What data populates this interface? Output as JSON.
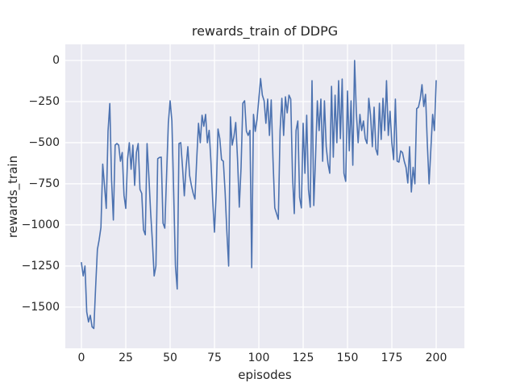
{
  "figure": {
    "background": "#ffffff",
    "axes_background": "#eaeaf2",
    "gridline_color": "#ffffff",
    "text_color": "#262626"
  },
  "chart_data": {
    "type": "line",
    "title": "rewards_train of DDPG",
    "xlabel": "episodes",
    "ylabel": "rewards_train",
    "line_color": "#4c72b0",
    "grid": true,
    "legend": "none",
    "xlim": [
      -9.1,
      215.9
    ],
    "ylim": [
      -1750.5,
      98
    ],
    "xticks": [
      0,
      25,
      50,
      75,
      100,
      125,
      150,
      175,
      200
    ],
    "xtick_labels": [
      "0",
      "25",
      "50",
      "75",
      "100",
      "125",
      "150",
      "175",
      "200"
    ],
    "yticks": [
      0,
      -250,
      -500,
      -750,
      -1000,
      -1250,
      -1500
    ],
    "ytick_labels": [
      "0",
      "−250",
      "−500",
      "−750",
      "−1000",
      "−1250",
      "−1500"
    ],
    "points": [
      [
        0,
        -1230
      ],
      [
        1,
        -1310
      ],
      [
        2,
        -1250
      ],
      [
        3,
        -1530
      ],
      [
        4,
        -1590
      ],
      [
        5,
        -1550
      ],
      [
        6,
        -1620
      ],
      [
        7,
        -1630
      ],
      [
        8,
        -1380
      ],
      [
        9,
        -1150
      ],
      [
        10,
        -1090
      ],
      [
        11,
        -1015
      ],
      [
        12,
        -630
      ],
      [
        13,
        -760
      ],
      [
        14,
        -900
      ],
      [
        15,
        -430
      ],
      [
        16,
        -262
      ],
      [
        17,
        -730
      ],
      [
        18,
        -970
      ],
      [
        19,
        -515
      ],
      [
        20,
        -505
      ],
      [
        21,
        -515
      ],
      [
        22,
        -613
      ],
      [
        23,
        -560
      ],
      [
        24,
        -820
      ],
      [
        25,
        -900
      ],
      [
        26,
        -600
      ],
      [
        27,
        -500
      ],
      [
        28,
        -662
      ],
      [
        29,
        -515
      ],
      [
        30,
        -760
      ],
      [
        31,
        -560
      ],
      [
        32,
        -505
      ],
      [
        33,
        -784
      ],
      [
        34,
        -808
      ],
      [
        35,
        -1030
      ],
      [
        36,
        -1060
      ],
      [
        37,
        -505
      ],
      [
        38,
        -700
      ],
      [
        39,
        -921
      ],
      [
        40,
        -1100
      ],
      [
        41,
        -1310
      ],
      [
        42,
        -1250
      ],
      [
        43,
        -598
      ],
      [
        44,
        -590
      ],
      [
        45,
        -588
      ],
      [
        46,
        -990
      ],
      [
        47,
        -1020
      ],
      [
        48,
        -700
      ],
      [
        49,
        -380
      ],
      [
        50,
        -245
      ],
      [
        51,
        -368
      ],
      [
        52,
        -800
      ],
      [
        53,
        -1250
      ],
      [
        54,
        -1390
      ],
      [
        55,
        -505
      ],
      [
        56,
        -500
      ],
      [
        57,
        -650
      ],
      [
        58,
        -823
      ],
      [
        59,
        -650
      ],
      [
        60,
        -524
      ],
      [
        61,
        -700
      ],
      [
        62,
        -760
      ],
      [
        63,
        -808
      ],
      [
        64,
        -843
      ],
      [
        65,
        -600
      ],
      [
        66,
        -382
      ],
      [
        67,
        -500
      ],
      [
        68,
        -333
      ],
      [
        69,
        -400
      ],
      [
        70,
        -328
      ],
      [
        71,
        -500
      ],
      [
        72,
        -425
      ],
      [
        73,
        -613
      ],
      [
        74,
        -850
      ],
      [
        75,
        -1044
      ],
      [
        76,
        -800
      ],
      [
        77,
        -417
      ],
      [
        78,
        -475
      ],
      [
        79,
        -603
      ],
      [
        80,
        -613
      ],
      [
        81,
        -800
      ],
      [
        82,
        -1044
      ],
      [
        83,
        -1250
      ],
      [
        84,
        -343
      ],
      [
        85,
        -515
      ],
      [
        86,
        -460
      ],
      [
        87,
        -377
      ],
      [
        88,
        -598
      ],
      [
        89,
        -892
      ],
      [
        90,
        -650
      ],
      [
        91,
        -260
      ],
      [
        92,
        -245
      ],
      [
        93,
        -430
      ],
      [
        94,
        -456
      ],
      [
        95,
        -425
      ],
      [
        96,
        -1260
      ],
      [
        97,
        -328
      ],
      [
        98,
        -431
      ],
      [
        99,
        -358
      ],
      [
        100,
        -235
      ],
      [
        101,
        -110
      ],
      [
        102,
        -211
      ],
      [
        103,
        -245
      ],
      [
        104,
        -382
      ],
      [
        105,
        -235
      ],
      [
        106,
        -456
      ],
      [
        107,
        -240
      ],
      [
        108,
        -603
      ],
      [
        109,
        -897
      ],
      [
        110,
        -931
      ],
      [
        111,
        -966
      ],
      [
        112,
        -426
      ],
      [
        113,
        -230
      ],
      [
        114,
        -456
      ],
      [
        115,
        -221
      ],
      [
        116,
        -319
      ],
      [
        117,
        -211
      ],
      [
        118,
        -235
      ],
      [
        119,
        -701
      ],
      [
        120,
        -931
      ],
      [
        121,
        -426
      ],
      [
        122,
        -368
      ],
      [
        123,
        -833
      ],
      [
        124,
        -897
      ],
      [
        125,
        -382
      ],
      [
        126,
        -686
      ],
      [
        127,
        -333
      ],
      [
        128,
        -784
      ],
      [
        129,
        -892
      ],
      [
        130,
        -123
      ],
      [
        131,
        -882
      ],
      [
        132,
        -588
      ],
      [
        133,
        -245
      ],
      [
        134,
        -426
      ],
      [
        135,
        -235
      ],
      [
        136,
        -613
      ],
      [
        137,
        -245
      ],
      [
        138,
        -524
      ],
      [
        139,
        -627
      ],
      [
        140,
        -686
      ],
      [
        141,
        -157
      ],
      [
        142,
        -588
      ],
      [
        143,
        -211
      ],
      [
        144,
        -500
      ],
      [
        145,
        -123
      ],
      [
        146,
        -475
      ],
      [
        147,
        -113
      ],
      [
        148,
        -686
      ],
      [
        149,
        -735
      ],
      [
        150,
        -186
      ],
      [
        151,
        -549
      ],
      [
        152,
        -245
      ],
      [
        153,
        -637
      ],
      [
        154,
        0
      ],
      [
        155,
        -319
      ],
      [
        156,
        -500
      ],
      [
        157,
        -328
      ],
      [
        158,
        -426
      ],
      [
        159,
        -368
      ],
      [
        160,
        -475
      ],
      [
        161,
        -505
      ],
      [
        162,
        -230
      ],
      [
        163,
        -333
      ],
      [
        164,
        -524
      ],
      [
        165,
        -284
      ],
      [
        166,
        -539
      ],
      [
        167,
        -574
      ],
      [
        168,
        -260
      ],
      [
        169,
        -480
      ],
      [
        170,
        -230
      ],
      [
        171,
        -426
      ],
      [
        172,
        -123
      ],
      [
        173,
        -456
      ],
      [
        174,
        -309
      ],
      [
        175,
        -500
      ],
      [
        176,
        -603
      ],
      [
        177,
        -235
      ],
      [
        178,
        -613
      ],
      [
        179,
        -618
      ],
      [
        180,
        -550
      ],
      [
        181,
        -560
      ],
      [
        182,
        -613
      ],
      [
        183,
        -650
      ],
      [
        184,
        -745
      ],
      [
        185,
        -524
      ],
      [
        186,
        -800
      ],
      [
        187,
        -650
      ],
      [
        188,
        -750
      ],
      [
        189,
        -294
      ],
      [
        190,
        -284
      ],
      [
        191,
        -235
      ],
      [
        192,
        -147
      ],
      [
        193,
        -280
      ],
      [
        194,
        -206
      ],
      [
        195,
        -505
      ],
      [
        196,
        -750
      ],
      [
        197,
        -539
      ],
      [
        198,
        -328
      ],
      [
        199,
        -426
      ],
      [
        200,
        -123
      ]
    ]
  }
}
